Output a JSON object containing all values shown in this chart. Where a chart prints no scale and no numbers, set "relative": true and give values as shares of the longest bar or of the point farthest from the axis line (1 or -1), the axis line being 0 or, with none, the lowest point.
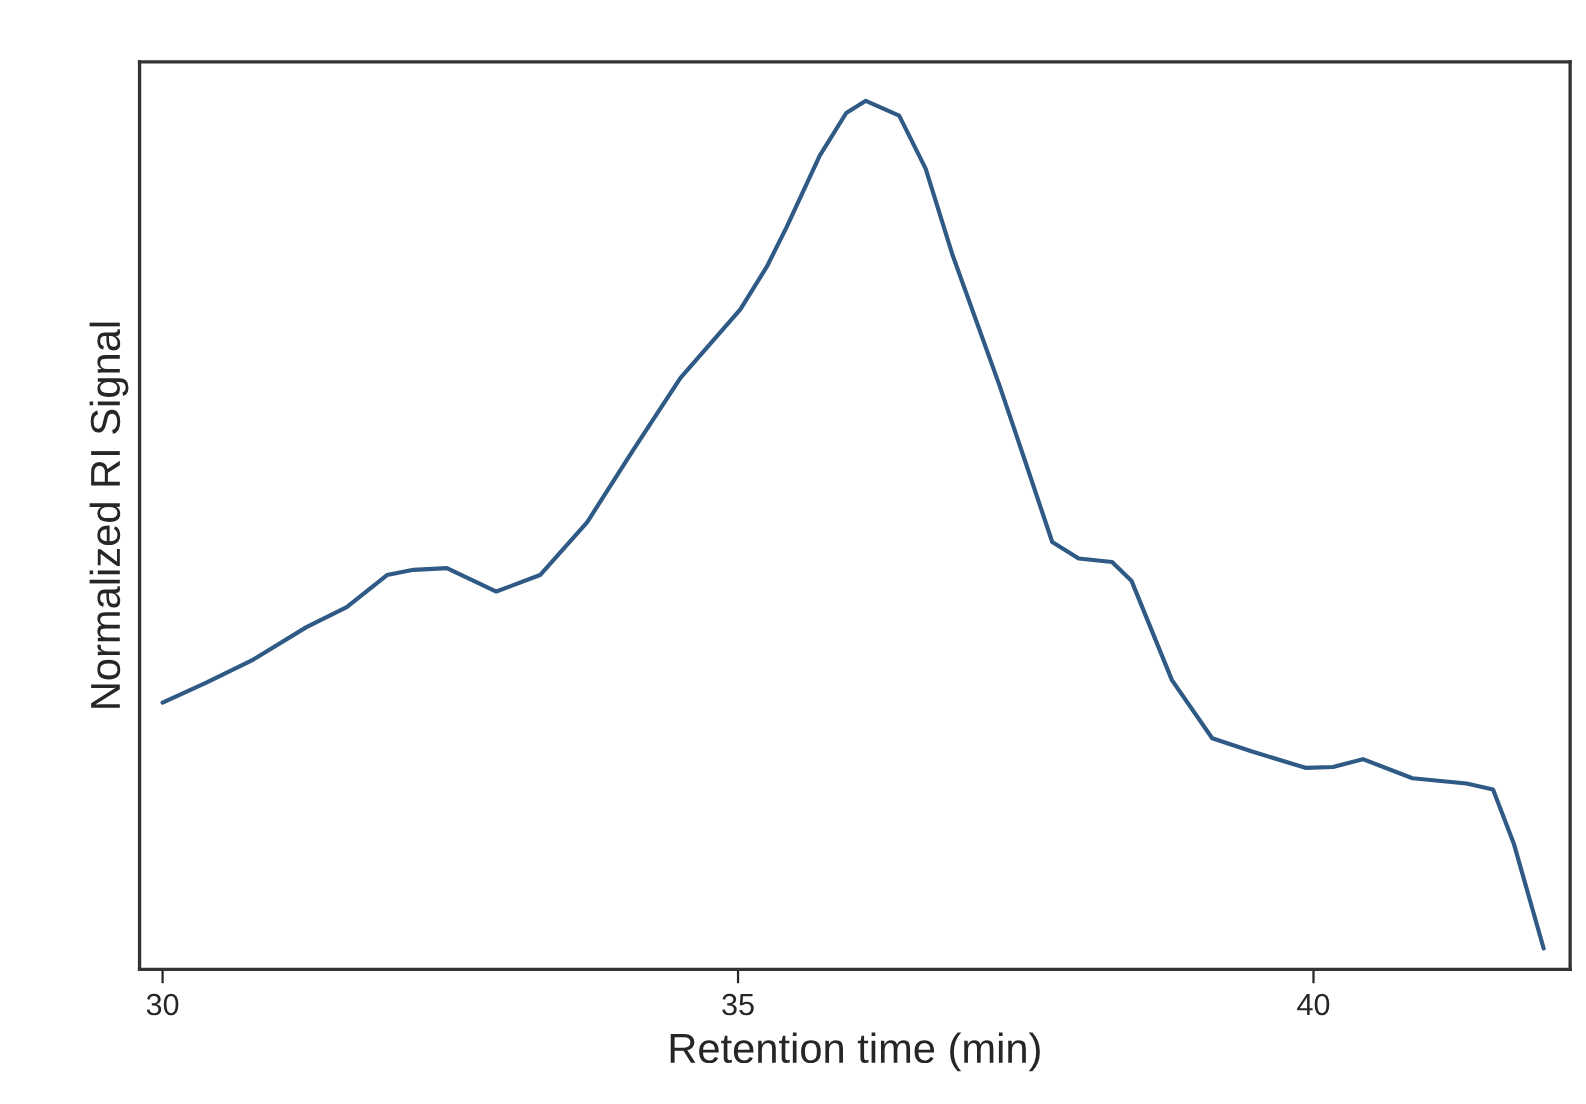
{
  "chart_data": {
    "type": "line",
    "relative": true,
    "xlabel": "Retention time (min)",
    "ylabel": "Normalized RI Signal",
    "xlim": [
      29.8,
      42.23
    ],
    "xticks": [
      30,
      35,
      40
    ],
    "grid": false,
    "x": [
      30.0,
      30.38,
      30.78,
      31.25,
      31.6,
      31.95,
      32.18,
      32.47,
      32.9,
      33.28,
      33.69,
      34.09,
      34.5,
      35.02,
      35.25,
      35.42,
      35.71,
      35.94,
      36.11,
      36.4,
      36.63,
      36.86,
      37.27,
      37.5,
      37.73,
      37.96,
      38.25,
      38.42,
      38.77,
      39.12,
      39.46,
      39.93,
      40.17,
      40.43,
      40.86,
      41.33,
      41.56,
      41.74,
      42.0
    ],
    "series": [
      {
        "color": "#2f5a85",
        "values": [
          0.307,
          0.33,
          0.356,
          0.394,
          0.417,
          0.454,
          0.46,
          0.462,
          0.435,
          0.454,
          0.515,
          0.598,
          0.681,
          0.76,
          0.809,
          0.854,
          0.937,
          0.986,
          1.0,
          0.983,
          0.922,
          0.824,
          0.673,
          0.583,
          0.492,
          0.473,
          0.469,
          0.447,
          0.333,
          0.266,
          0.251,
          0.232,
          0.233,
          0.242,
          0.22,
          0.214,
          0.207,
          0.145,
          0.024
        ]
      }
    ]
  }
}
